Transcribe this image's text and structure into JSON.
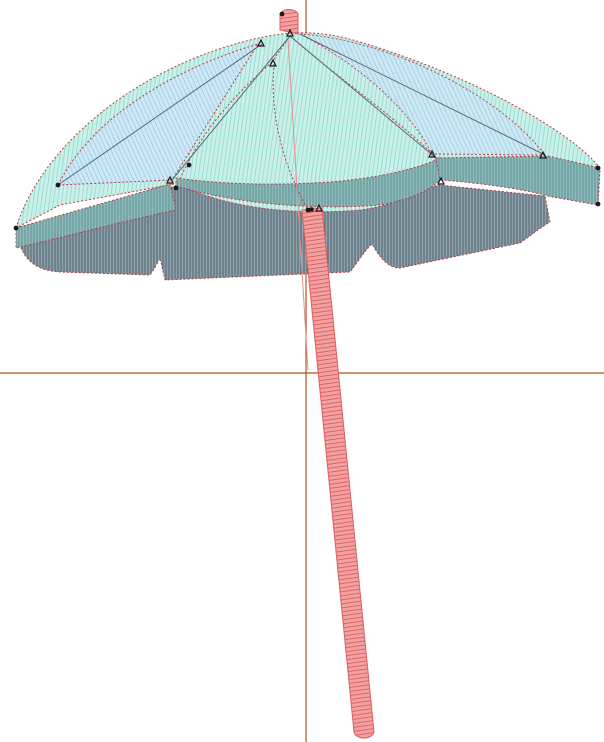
{
  "design": {
    "title": "",
    "subject": "beach umbrella"
  },
  "colors": {
    "background": "#ffffff",
    "canopy_light": "#c9f1ea",
    "canopy_light_stitch": "#8fd6cf",
    "canopy_panel_blue": "#cde9f7",
    "canopy_shadow": "#7f98a4",
    "canopy_shadow_stitch": "#5a6b74",
    "canopy_rim": "#6e9fa1",
    "outline_red": "#c0393f",
    "pole": "#ef8f8f",
    "pole_stitch": "#d95f62",
    "crosshair": "#b5531d",
    "node": "#1a1a1a"
  },
  "icons": {
    "node_marker": "triangle-node-icon",
    "point_marker": "dot-node-icon"
  }
}
